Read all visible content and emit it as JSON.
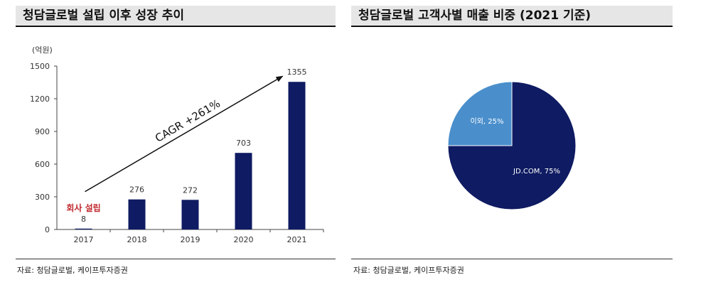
{
  "panels": [
    {
      "title": "청담글로벌 설립 이후 성장 추이",
      "source": "자료: 청담글로벌, 케이프투자증권"
    },
    {
      "title": "청담글로벌 고객사별 매출 비중 (2021 기준)",
      "source": "자료: 청담글로벌, 케이프투자증권"
    }
  ],
  "chart_data": [
    {
      "type": "bar",
      "title": "청담글로벌 설립 이후 성장 추이",
      "ylabel": "(억원)",
      "categories": [
        "2017",
        "2018",
        "2019",
        "2020",
        "2021"
      ],
      "values": [
        8,
        276,
        272,
        703,
        1355
      ],
      "ylim": [
        0,
        1500
      ],
      "yticks": [
        0,
        300,
        600,
        900,
        1200,
        1500
      ],
      "bar_color": "#0f1b62",
      "annotations": {
        "founding_label": "회사 설립",
        "founding_color": "#c0282d",
        "cagr_label": "CAGR +261%"
      },
      "grid": false,
      "legend": "none"
    },
    {
      "type": "pie",
      "title": "청담글로벌 고객사별 매출 비중 (2021 기준)",
      "slices": [
        {
          "label": "JD.COM, 75%",
          "value": 75,
          "color": "#0f1b62"
        },
        {
          "label": "이외, 25%",
          "value": 25,
          "color": "#4a8fcc"
        }
      ],
      "legend": "none"
    }
  ]
}
